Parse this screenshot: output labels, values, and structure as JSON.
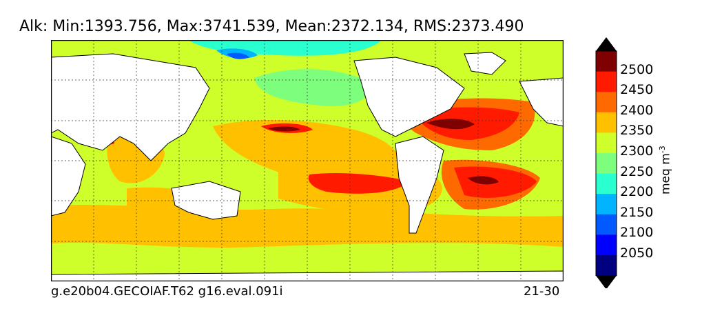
{
  "title": "Alk: Min:1393.756, Max:3741.539, Mean:2372.134, RMS:2373.490",
  "footer": {
    "case": "g.e20b04.GECOIAF.T62 g16.eval.091i",
    "years": "21-30"
  },
  "colorbar": {
    "label": "meq m",
    "label_exp": "-3",
    "ticks": [
      "2500",
      "2450",
      "2400",
      "2350",
      "2300",
      "2250",
      "2200",
      "2150",
      "2100",
      "2050"
    ],
    "colors": [
      "#7f0000",
      "#ff1a00",
      "#ff6a00",
      "#ffc000",
      "#cfff2a",
      "#7dff7d",
      "#2affcf",
      "#00b4ff",
      "#005aff",
      "#0000ff",
      "#000080"
    ],
    "over_color": "#000000",
    "under_color": "#000000"
  }
}
